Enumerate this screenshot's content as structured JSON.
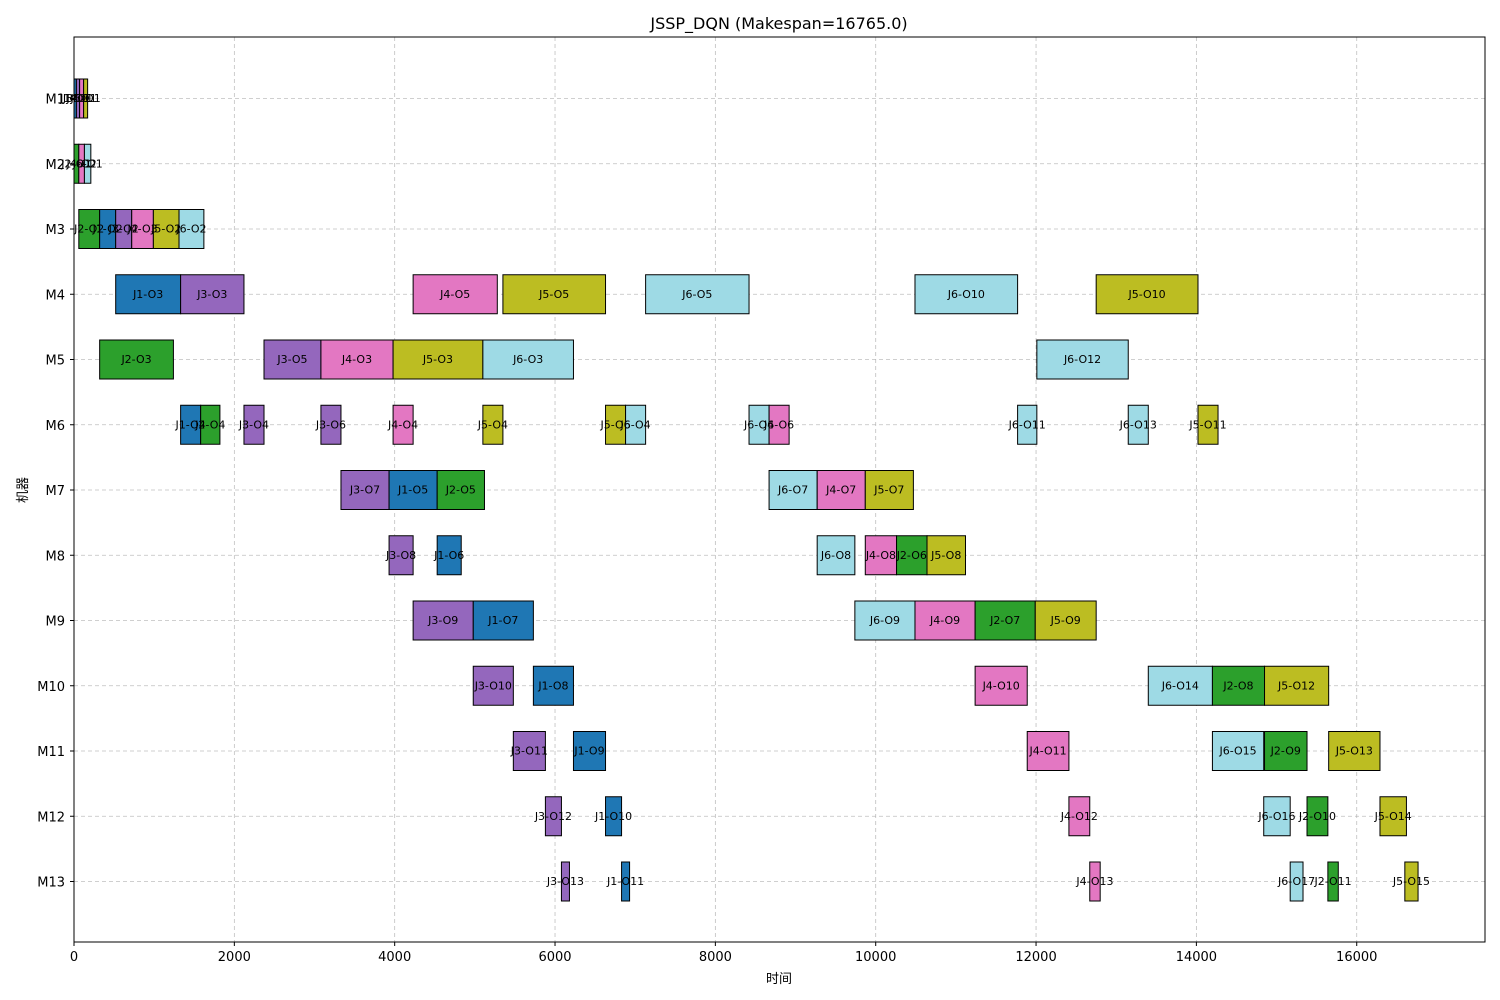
{
  "chart_data": {
    "type": "gantt",
    "title": "JSSP_DQN (Makespan=16765.0)",
    "xlabel": "时间",
    "ylabel": "机器",
    "xlim": [
      0,
      17600
    ],
    "xticks": [
      0,
      2000,
      4000,
      6000,
      8000,
      10000,
      12000,
      14000,
      16000
    ],
    "machines": [
      "M1",
      "M2",
      "M3",
      "M4",
      "M5",
      "M6",
      "M7",
      "M8",
      "M9",
      "M10",
      "M11",
      "M12",
      "M13"
    ],
    "grid": true,
    "job_colors": {
      "J1": "#1f77b4",
      "J2": "#2ca02c",
      "J3": "#9467bd",
      "J4": "#e377c2",
      "J5": "#bcbd22",
      "J6": "#9edae5"
    },
    "tasks": [
      {
        "machine": "M1",
        "job": "J1",
        "label": "J1-O1",
        "start": 0,
        "end": 30
      },
      {
        "machine": "M1",
        "job": "J3",
        "label": "J3-O1",
        "start": 30,
        "end": 70
      },
      {
        "machine": "M1",
        "job": "J4",
        "label": "J4-O1",
        "start": 70,
        "end": 120
      },
      {
        "machine": "M1",
        "job": "J5",
        "label": "J5-O1",
        "start": 120,
        "end": 170
      },
      {
        "machine": "M2",
        "job": "J2",
        "label": "J2-O1",
        "start": 0,
        "end": 60
      },
      {
        "machine": "M2",
        "job": "J4",
        "label": "J4-O2",
        "start": 60,
        "end": 130
      },
      {
        "machine": "M2",
        "job": "J6",
        "label": "J6-O1",
        "start": 130,
        "end": 210
      },
      {
        "machine": "M3",
        "job": "J2",
        "label": "J2-O2",
        "start": 60,
        "end": 320
      },
      {
        "machine": "M3",
        "job": "J1",
        "label": "J1-O2",
        "start": 320,
        "end": 520
      },
      {
        "machine": "M3",
        "job": "J3",
        "label": "J3-O2",
        "start": 520,
        "end": 720
      },
      {
        "machine": "M3",
        "job": "J4",
        "label": "J4-O3",
        "start": 720,
        "end": 990
      },
      {
        "machine": "M3",
        "job": "J5",
        "label": "J5-O2",
        "start": 990,
        "end": 1310
      },
      {
        "machine": "M3",
        "job": "J6",
        "label": "J6-O2",
        "start": 1310,
        "end": 1620
      },
      {
        "machine": "M4",
        "job": "J1",
        "label": "J1-O3",
        "start": 520,
        "end": 1330
      },
      {
        "machine": "M4",
        "job": "J3",
        "label": "J3-O3",
        "start": 1330,
        "end": 2120
      },
      {
        "machine": "M4",
        "job": "J4",
        "label": "J4-O5",
        "start": 4230,
        "end": 5280
      },
      {
        "machine": "M4",
        "job": "J5",
        "label": "J5-O5",
        "start": 5350,
        "end": 6630
      },
      {
        "machine": "M4",
        "job": "J6",
        "label": "J6-O5",
        "start": 7130,
        "end": 8420
      },
      {
        "machine": "M4",
        "job": "J6",
        "label": "J6-O10",
        "start": 10490,
        "end": 11770
      },
      {
        "machine": "M4",
        "job": "J5",
        "label": "J5-O10",
        "start": 12750,
        "end": 14020
      },
      {
        "machine": "M5",
        "job": "J2",
        "label": "J2-O3",
        "start": 320,
        "end": 1240
      },
      {
        "machine": "M5",
        "job": "J3",
        "label": "J3-O5",
        "start": 2370,
        "end": 3080
      },
      {
        "machine": "M5",
        "job": "J4",
        "label": "J4-O3",
        "start": 3080,
        "end": 3980
      },
      {
        "machine": "M5",
        "job": "J5",
        "label": "J5-O3",
        "start": 3980,
        "end": 5100
      },
      {
        "machine": "M5",
        "job": "J6",
        "label": "J6-O3",
        "start": 5100,
        "end": 6230
      },
      {
        "machine": "M5",
        "job": "J6",
        "label": "J6-O12",
        "start": 12010,
        "end": 13150
      },
      {
        "machine": "M6",
        "job": "J1",
        "label": "J1-O4",
        "start": 1330,
        "end": 1580
      },
      {
        "machine": "M6",
        "job": "J2",
        "label": "J2-O4",
        "start": 1580,
        "end": 1820
      },
      {
        "machine": "M6",
        "job": "J3",
        "label": "J3-O4",
        "start": 2120,
        "end": 2370
      },
      {
        "machine": "M6",
        "job": "J3",
        "label": "J3-O6",
        "start": 3080,
        "end": 3330
      },
      {
        "machine": "M6",
        "job": "J4",
        "label": "J4-O4",
        "start": 3980,
        "end": 4230
      },
      {
        "machine": "M6",
        "job": "J5",
        "label": "J5-O4",
        "start": 5100,
        "end": 5350
      },
      {
        "machine": "M6",
        "job": "J5",
        "label": "J5-O6",
        "start": 6630,
        "end": 6880
      },
      {
        "machine": "M6",
        "job": "J6",
        "label": "J6-O4",
        "start": 6880,
        "end": 7130
      },
      {
        "machine": "M6",
        "job": "J6",
        "label": "J6-O6",
        "start": 8420,
        "end": 8670
      },
      {
        "machine": "M6",
        "job": "J4",
        "label": "J4-O6",
        "start": 8670,
        "end": 8920
      },
      {
        "machine": "M6",
        "job": "J6",
        "label": "J6-O11",
        "start": 11770,
        "end": 12010
      },
      {
        "machine": "M6",
        "job": "J6",
        "label": "J6-O13",
        "start": 13150,
        "end": 13400
      },
      {
        "machine": "M6",
        "job": "J5",
        "label": "J5-O11",
        "start": 14020,
        "end": 14270
      },
      {
        "machine": "M7",
        "job": "J3",
        "label": "J3-O7",
        "start": 3330,
        "end": 3930
      },
      {
        "machine": "M7",
        "job": "J1",
        "label": "J1-O5",
        "start": 3930,
        "end": 4530
      },
      {
        "machine": "M7",
        "job": "J2",
        "label": "J2-O5",
        "start": 4530,
        "end": 5120
      },
      {
        "machine": "M7",
        "job": "J6",
        "label": "J6-O7",
        "start": 8670,
        "end": 9270
      },
      {
        "machine": "M7",
        "job": "J4",
        "label": "J4-O7",
        "start": 9270,
        "end": 9870
      },
      {
        "machine": "M7",
        "job": "J5",
        "label": "J5-O7",
        "start": 9870,
        "end": 10470
      },
      {
        "machine": "M8",
        "job": "J3",
        "label": "J3-O8",
        "start": 3930,
        "end": 4230
      },
      {
        "machine": "M8",
        "job": "J1",
        "label": "J1-O6",
        "start": 4530,
        "end": 4830
      },
      {
        "machine": "M8",
        "job": "J6",
        "label": "J6-O8",
        "start": 9270,
        "end": 9740
      },
      {
        "machine": "M8",
        "job": "J4",
        "label": "J4-O8",
        "start": 9870,
        "end": 10260
      },
      {
        "machine": "M8",
        "job": "J2",
        "label": "J2-O6",
        "start": 10260,
        "end": 10640
      },
      {
        "machine": "M8",
        "job": "J5",
        "label": "J5-O8",
        "start": 10640,
        "end": 11120
      },
      {
        "machine": "M9",
        "job": "J3",
        "label": "J3-O9",
        "start": 4230,
        "end": 4980
      },
      {
        "machine": "M9",
        "job": "J1",
        "label": "J1-O7",
        "start": 4980,
        "end": 5730
      },
      {
        "machine": "M9",
        "job": "J6",
        "label": "J6-O9",
        "start": 9740,
        "end": 10490
      },
      {
        "machine": "M9",
        "job": "J4",
        "label": "J4-O9",
        "start": 10490,
        "end": 11240
      },
      {
        "machine": "M9",
        "job": "J2",
        "label": "J2-O7",
        "start": 11240,
        "end": 11990
      },
      {
        "machine": "M9",
        "job": "J5",
        "label": "J5-O9",
        "start": 11990,
        "end": 12750
      },
      {
        "machine": "M10",
        "job": "J3",
        "label": "J3-O10",
        "start": 4980,
        "end": 5480
      },
      {
        "machine": "M10",
        "job": "J1",
        "label": "J1-O8",
        "start": 5730,
        "end": 6230
      },
      {
        "machine": "M10",
        "job": "J4",
        "label": "J4-O10",
        "start": 11240,
        "end": 11890
      },
      {
        "machine": "M10",
        "job": "J6",
        "label": "J6-O14",
        "start": 13400,
        "end": 14200
      },
      {
        "machine": "M10",
        "job": "J2",
        "label": "J2-O8",
        "start": 14200,
        "end": 14850
      },
      {
        "machine": "M10",
        "job": "J5",
        "label": "J5-O12",
        "start": 14850,
        "end": 15650
      },
      {
        "machine": "M11",
        "job": "J3",
        "label": "J3-O11",
        "start": 5480,
        "end": 5880
      },
      {
        "machine": "M11",
        "job": "J1",
        "label": "J1-O9",
        "start": 6230,
        "end": 6630
      },
      {
        "machine": "M11",
        "job": "J4",
        "label": "J4-O11",
        "start": 11890,
        "end": 12410
      },
      {
        "machine": "M11",
        "job": "J6",
        "label": "J6-O15",
        "start": 14200,
        "end": 14840
      },
      {
        "machine": "M11",
        "job": "J2",
        "label": "J2-O9",
        "start": 14850,
        "end": 15380
      },
      {
        "machine": "M11",
        "job": "J5",
        "label": "J5-O13",
        "start": 15650,
        "end": 16290
      },
      {
        "machine": "M12",
        "job": "J3",
        "label": "J3-O12",
        "start": 5880,
        "end": 6080
      },
      {
        "machine": "M12",
        "job": "J1",
        "label": "J1-O10",
        "start": 6630,
        "end": 6830
      },
      {
        "machine": "M12",
        "job": "J4",
        "label": "J4-O12",
        "start": 12410,
        "end": 12670
      },
      {
        "machine": "M12",
        "job": "J6",
        "label": "J6-O16",
        "start": 14840,
        "end": 15170
      },
      {
        "machine": "M12",
        "job": "J2",
        "label": "J2-O10",
        "start": 15380,
        "end": 15640
      },
      {
        "machine": "M12",
        "job": "J5",
        "label": "J5-O14",
        "start": 16290,
        "end": 16620
      },
      {
        "machine": "M13",
        "job": "J3",
        "label": "J3-O13",
        "start": 6080,
        "end": 6180
      },
      {
        "machine": "M13",
        "job": "J1",
        "label": "J1-O11",
        "start": 6830,
        "end": 6930
      },
      {
        "machine": "M13",
        "job": "J4",
        "label": "J4-O13",
        "start": 12670,
        "end": 12800
      },
      {
        "machine": "M13",
        "job": "J6",
        "label": "J6-O17",
        "start": 15170,
        "end": 15330
      },
      {
        "machine": "M13",
        "job": "J2",
        "label": "J2-O11",
        "start": 15640,
        "end": 15770
      },
      {
        "machine": "M13",
        "job": "J5",
        "label": "J5-O15",
        "start": 16600,
        "end": 16765
      }
    ]
  }
}
